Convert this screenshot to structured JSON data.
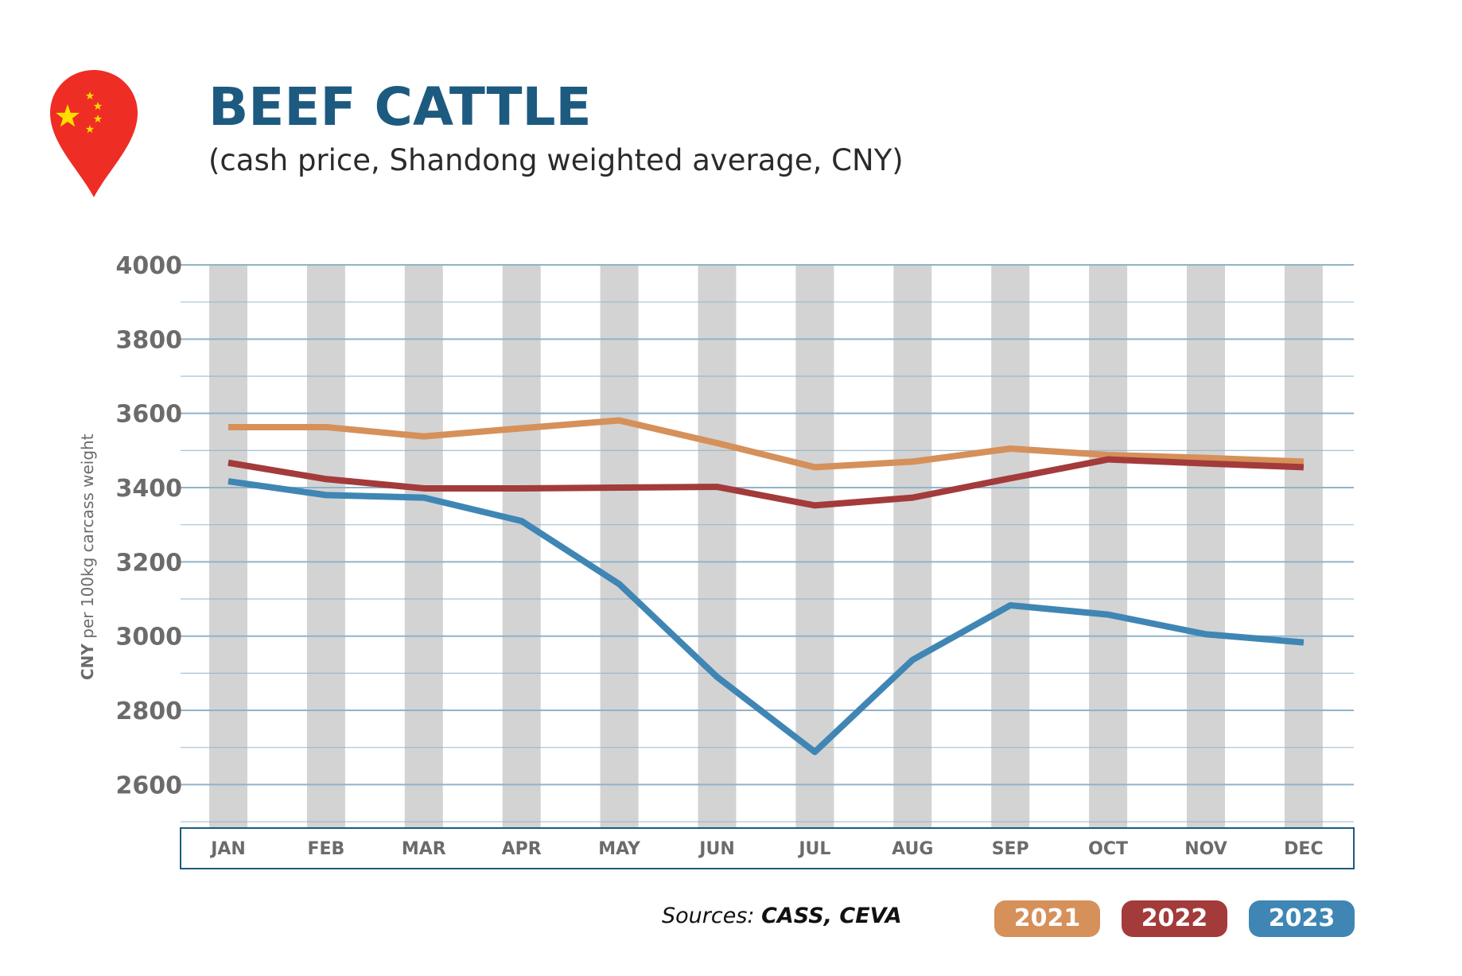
{
  "header": {
    "title": "BEEF CATTLE",
    "subtitle": "(cash price, Shandong weighted average, CNY)"
  },
  "flag_icon": "china-flag-location-pin-icon",
  "sources": {
    "prefix": "Sources: ",
    "names": "CASS, CEVA"
  },
  "colors": {
    "title": "#1d5a80",
    "series_2021": "#d6905a",
    "series_2022": "#a33b3b",
    "series_2023": "#3f86b4",
    "grid": "#8fb3c8",
    "column_band": "#d3d3d3",
    "pin": "#ee2d24",
    "star": "#ffde00"
  },
  "chart_data": {
    "type": "line",
    "title": "BEEF CATTLE",
    "subtitle": "(cash price, Shandong weighted average, CNY)",
    "ylabel_bold": "CNY",
    "ylabel_rest": " per 100kg carcass weight",
    "xlabel": "",
    "categories": [
      "JAN",
      "FEB",
      "MAR",
      "APR",
      "MAY",
      "JUN",
      "JUL",
      "AUG",
      "SEP",
      "OCT",
      "NOV",
      "DEC"
    ],
    "yticks": [
      4000,
      3800,
      3600,
      3400,
      3200,
      3000,
      2800,
      2600
    ],
    "ylim": [
      2500,
      4000
    ],
    "grid": true,
    "legend_position": "bottom-right",
    "series": [
      {
        "name": "2021",
        "color": "#d6905a",
        "values": [
          3563,
          3563,
          3538,
          3560,
          3581,
          3520,
          3455,
          3470,
          3505,
          3488,
          3480,
          3470
        ]
      },
      {
        "name": "2022",
        "color": "#a33b3b",
        "values": [
          3467,
          3423,
          3398,
          3398,
          3400,
          3402,
          3352,
          3373,
          3425,
          3476,
          3465,
          3455
        ]
      },
      {
        "name": "2023",
        "color": "#3f86b4",
        "values": [
          3417,
          3380,
          3373,
          3310,
          3140,
          2890,
          2688,
          2936,
          3083,
          3058,
          3005,
          2983
        ]
      }
    ]
  }
}
